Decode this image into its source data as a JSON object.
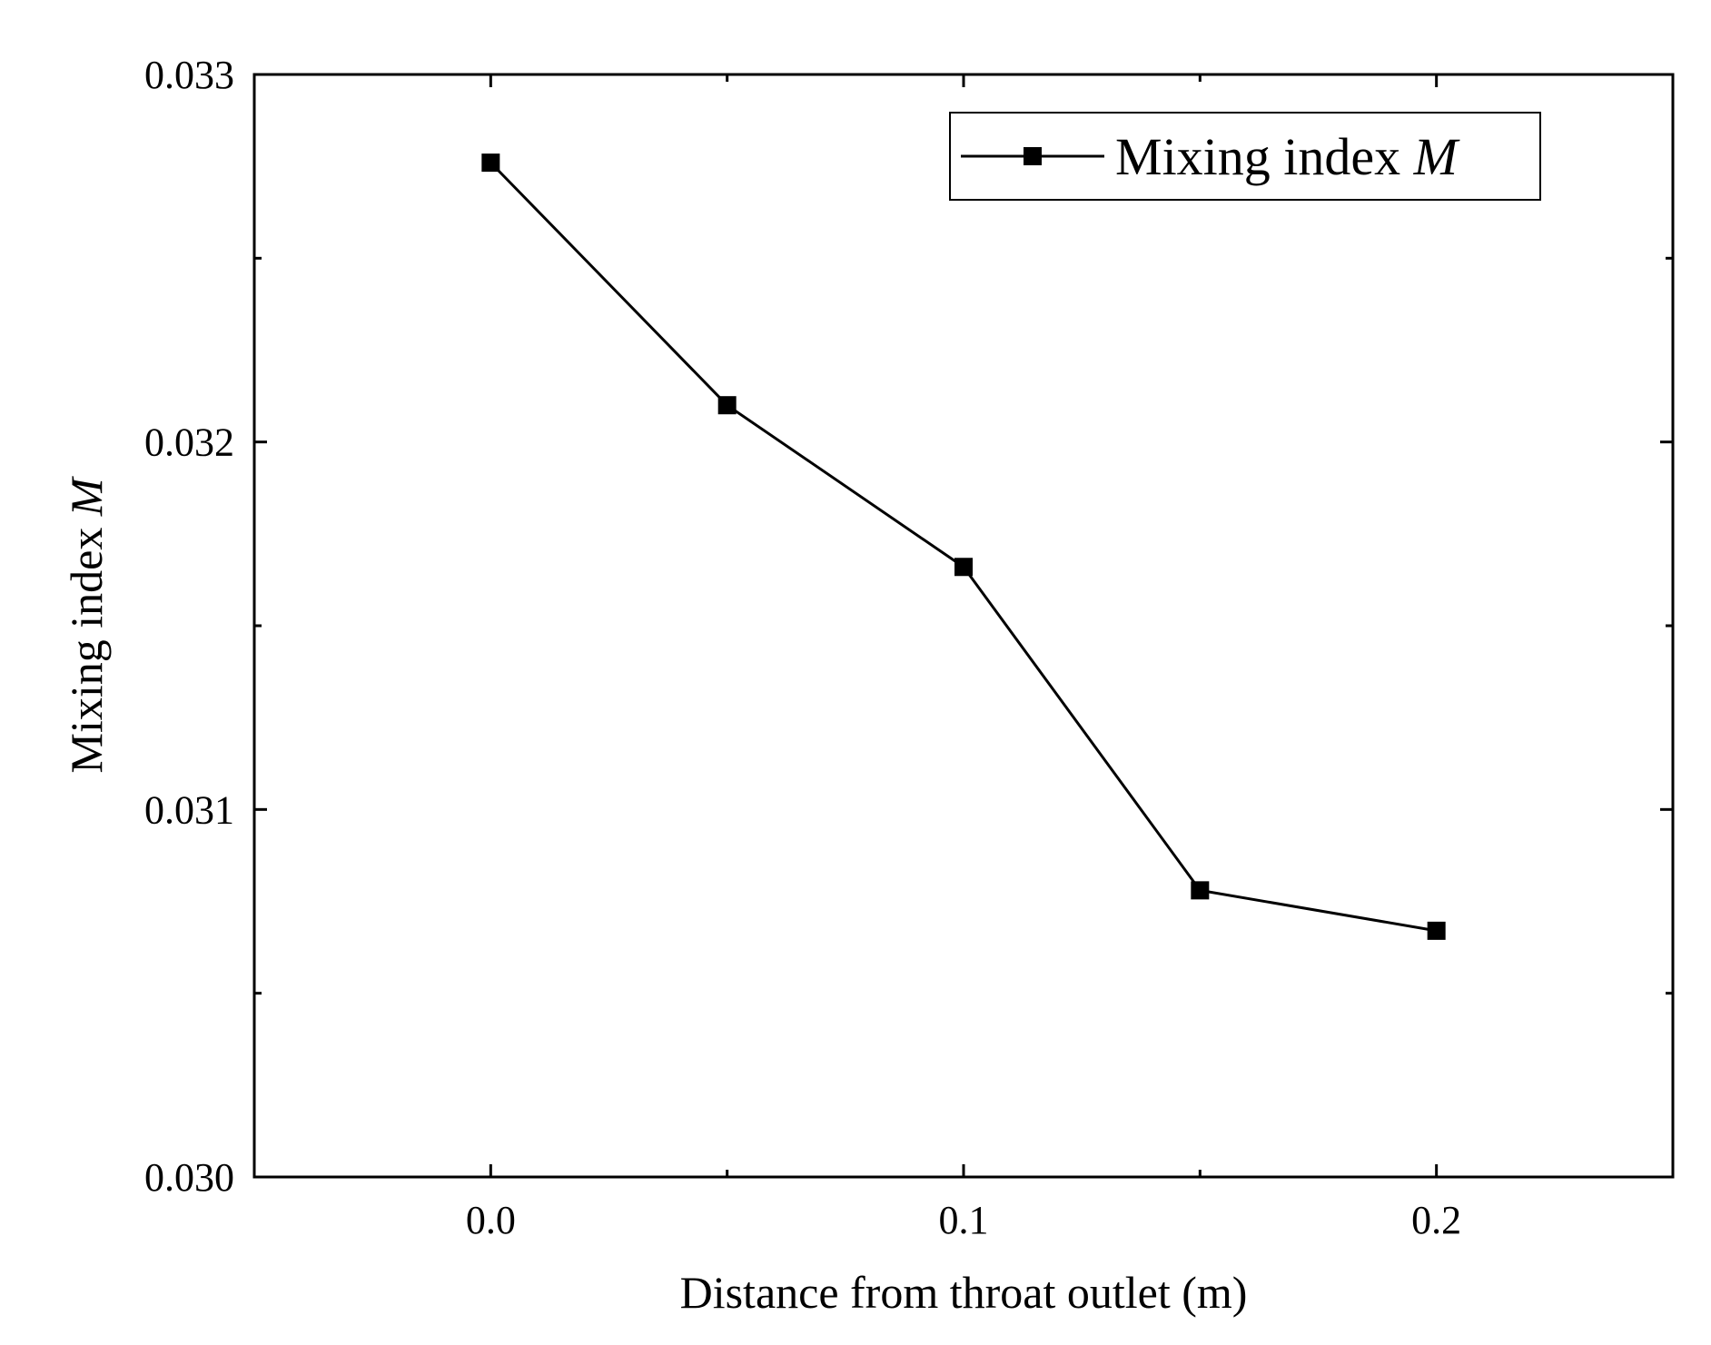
{
  "chart_data": {
    "type": "line",
    "title": "",
    "xlabel": "Distance from throat outlet (m)",
    "ylabel_text": "Mixing index ",
    "ylabel_symbol": "M",
    "xlim": [
      -0.05,
      0.25
    ],
    "ylim": [
      0.03,
      0.033
    ],
    "xticks": [
      0.0,
      0.1,
      0.2
    ],
    "xtick_labels": [
      "0.0",
      "0.1",
      "0.2"
    ],
    "yticks": [
      0.03,
      0.031,
      0.032,
      0.033
    ],
    "ytick_labels": [
      "0.030",
      "0.031",
      "0.032",
      "0.033"
    ],
    "x_minor_ticks": [
      -0.05,
      0.05,
      0.15,
      0.25
    ],
    "y_minor_ticks": [
      0.0305,
      0.0315,
      0.0325
    ],
    "grid": false,
    "legend_position": "top-right",
    "series": [
      {
        "name_text": "Mixing index ",
        "name_symbol": "M",
        "color": "#000000",
        "marker": "square",
        "x": [
          0.0,
          0.05,
          0.1,
          0.15,
          0.2
        ],
        "y": [
          0.03276,
          0.0321,
          0.03166,
          0.03078,
          0.03067
        ]
      }
    ]
  }
}
